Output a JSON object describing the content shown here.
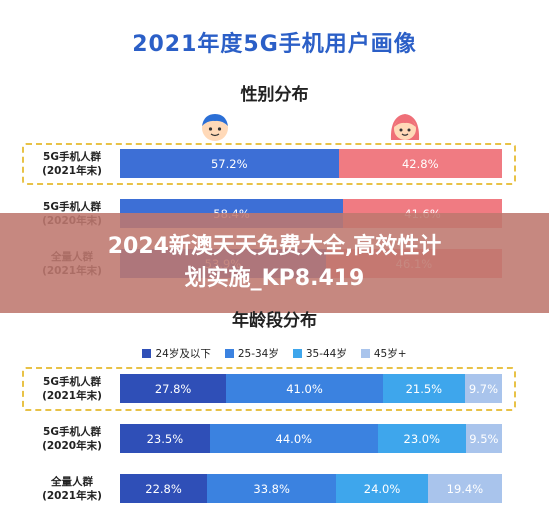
{
  "header": {
    "title": "2021年度5G手机用户画像",
    "gender_title": "性别分布",
    "age_title": "年龄段分布"
  },
  "banner": {
    "line1": "2024新澳天天免费大全,高效性计",
    "line2": "划实施_KP8.419"
  },
  "icons": [
    "male-avatar-icon",
    "female-avatar-icon"
  ],
  "colors": {
    "title": "#2b5fc7",
    "male": "#3d6fd6",
    "female": "#f07b82",
    "age_24": "#2f4fb7",
    "age_25_34": "#3b82e0",
    "age_35_44": "#3ea6ec",
    "age_45": "#a9c4ec",
    "highlight_border": "#e8c247"
  },
  "chart_data": [
    {
      "type": "bar",
      "title": "性别分布",
      "categories": [
        "5G手机人群\n(2021年末)",
        "5G手机人群\n(2020年末)",
        "全量人群\n(2021年末)"
      ],
      "series": [
        {
          "values": [
            57.2,
            58.4,
            53.9
          ]
        },
        {
          "values": [
            42.8,
            41.6,
            46.1
          ]
        }
      ],
      "unit": "%",
      "stacked": true
    },
    {
      "type": "bar",
      "title": "年龄段分布",
      "categories": [
        "5G手机人群\n(2021年末)",
        "5G手机人群\n(2020年末)",
        "全量人群\n(2021年末)"
      ],
      "series": [
        {
          "name": "24岁及以下",
          "values": [
            27.8,
            23.5,
            22.8
          ]
        },
        {
          "name": "25-34岁",
          "values": [
            41.0,
            44.0,
            33.8
          ]
        },
        {
          "name": "35-44岁",
          "values": [
            21.5,
            23.0,
            24.0
          ]
        },
        {
          "name": "45岁+",
          "values": [
            9.7,
            9.5,
            19.4
          ]
        }
      ],
      "unit": "%",
      "stacked": true,
      "legend": "top"
    }
  ],
  "gender_rows": [
    {
      "label1": "5G手机人群",
      "label2": "(2021年末)",
      "male": "57.2%",
      "female": "42.8%"
    },
    {
      "label1": "5G手机人群",
      "label2": "(2020年末)",
      "male": "58.4%",
      "female": "41.6%"
    },
    {
      "label1": "全量人群",
      "label2": "(2021年末)",
      "male": "53.9%",
      "female": "46.1%"
    }
  ],
  "age_rows": [
    {
      "label1": "5G手机人群",
      "label2": "(2021年末)",
      "v": [
        "27.8%",
        "41.0%",
        "21.5%",
        "9.7%"
      ]
    },
    {
      "label1": "5G手机人群",
      "label2": "(2020年末)",
      "v": [
        "23.5%",
        "44.0%",
        "23.0%",
        "9.5%"
      ]
    },
    {
      "label1": "全量人群",
      "label2": "(2021年末)",
      "v": [
        "22.8%",
        "33.8%",
        "24.0%",
        "19.4%"
      ]
    }
  ],
  "legend": [
    "24岁及以下",
    "25-34岁",
    "35-44岁",
    "45岁+"
  ]
}
